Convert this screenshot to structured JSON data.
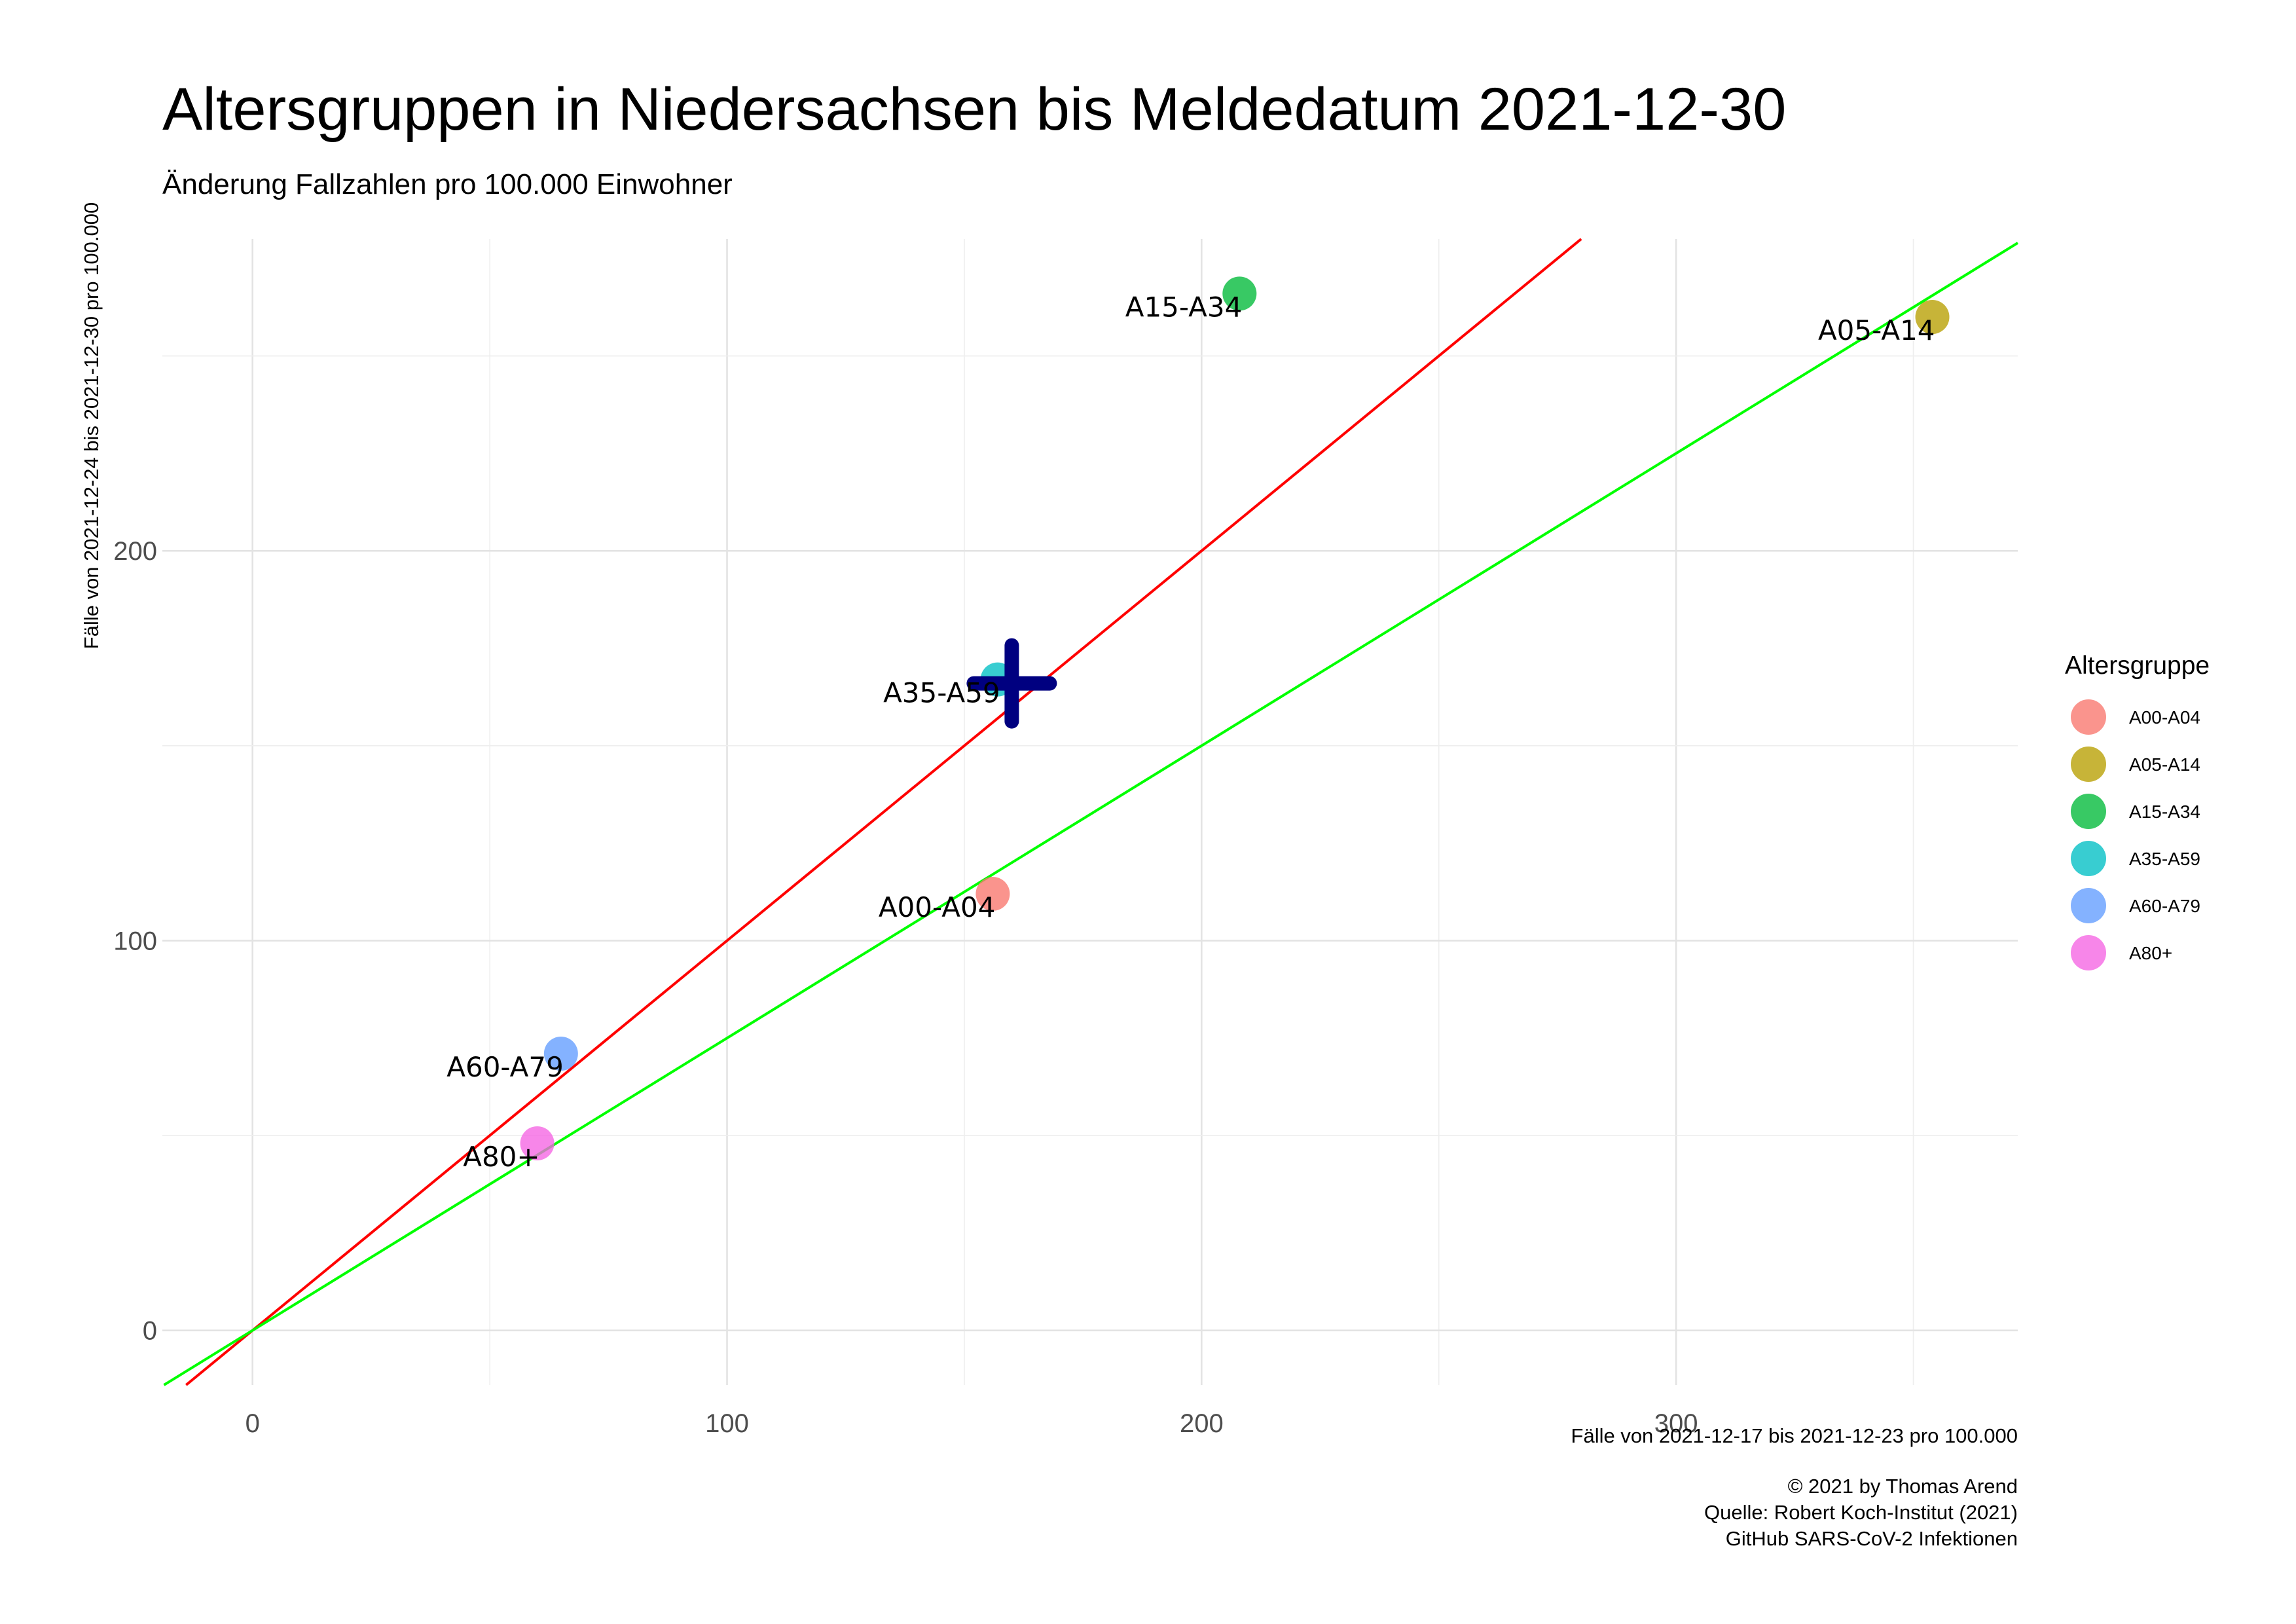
{
  "chart_data": {
    "type": "scatter",
    "title": "Altersgruppen in Niedersachsen bis Meldedatum 2021-12-30",
    "subtitle": "Änderung Fallzahlen pro 100.000 Einwohner",
    "xlabel": "Fälle von 2021-12-17 bis 2021-12-23 pro 100.000",
    "ylabel": "Fälle von 2021-12-24 bis 2021-12-30 pro 100.000",
    "xlim": [
      -19,
      372
    ],
    "ylim": [
      -14,
      280
    ],
    "xticks": [
      0,
      100,
      200,
      300
    ],
    "yticks": [
      0,
      100,
      200
    ],
    "grid": true,
    "legend": {
      "title": "Altersgruppe",
      "position": "right"
    },
    "series": [
      {
        "name": "A00-A04",
        "x": 156,
        "y": 112,
        "color": "#F8766D"
      },
      {
        "name": "A05-A14",
        "x": 354,
        "y": 260,
        "color": "#B79F00"
      },
      {
        "name": "A15-A34",
        "x": 208,
        "y": 266,
        "color": "#00BA38"
      },
      {
        "name": "A35-A59",
        "x": 157,
        "y": 167,
        "color": "#00BFC4"
      },
      {
        "name": "A60-A79",
        "x": 65,
        "y": 71,
        "color": "#619CFF"
      },
      {
        "name": "A80+",
        "x": 60,
        "y": 48,
        "color": "#F564E3"
      }
    ],
    "reference_lines": [
      {
        "slope": 1,
        "color": "#ff0000"
      },
      {
        "slope": 0.75,
        "color": "#00ff00"
      }
    ],
    "overall_marker": {
      "x": 160,
      "y": 166,
      "color": "#000080"
    }
  },
  "caption": {
    "line1": "© 2021 by Thomas Arend",
    "line2": "Quelle: Robert Koch-Institut (2021)",
    "line3": "GitHub SARS-CoV-2 Infektionen"
  }
}
